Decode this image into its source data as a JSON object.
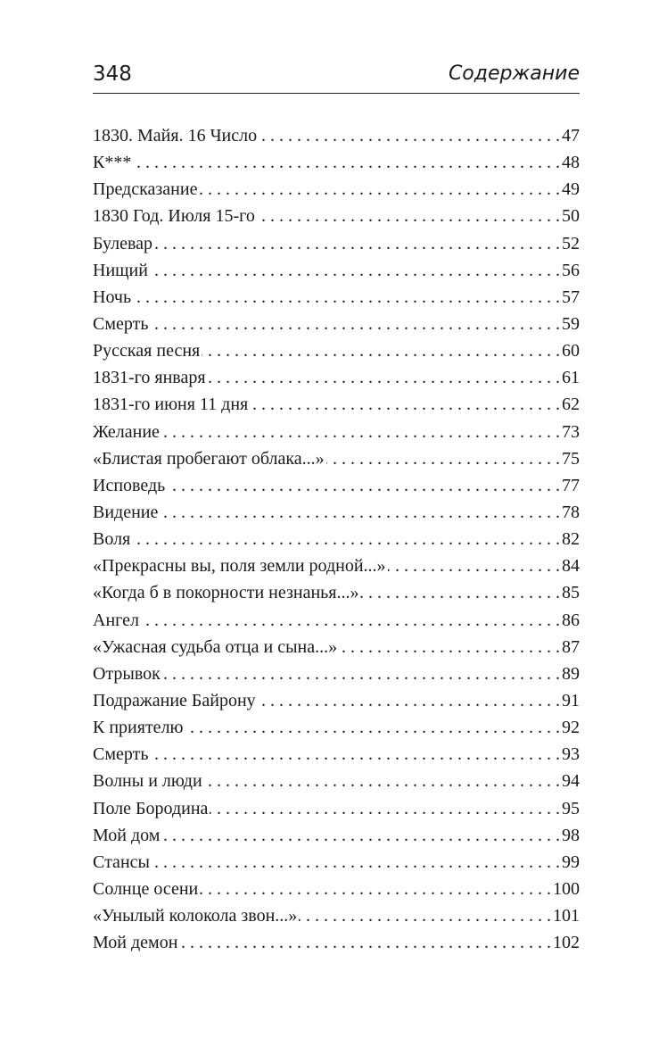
{
  "header": {
    "page_number": "348",
    "section": "Содержание"
  },
  "toc": [
    {
      "title": "1830. Майя. 16 Число",
      "page": "47"
    },
    {
      "title": "К***",
      "page": "48"
    },
    {
      "title": "Предсказание",
      "page": "49"
    },
    {
      "title": "1830 Год. Июля 15-го",
      "page": "50"
    },
    {
      "title": "Булевар",
      "page": "52"
    },
    {
      "title": "Нищий",
      "page": "56"
    },
    {
      "title": "Ночь",
      "page": "57"
    },
    {
      "title": "Смерть",
      "page": "59"
    },
    {
      "title": "Русская песня",
      "page": "60"
    },
    {
      "title": "1831-го января",
      "page": "61"
    },
    {
      "title": "1831-го июня 11 дня",
      "page": "62"
    },
    {
      "title": "Желание",
      "page": "73"
    },
    {
      "title": "«Блистая пробегают облака...»",
      "page": "75"
    },
    {
      "title": "Исповедь",
      "page": "77"
    },
    {
      "title": "Видение",
      "page": "78"
    },
    {
      "title": "Воля",
      "page": "82"
    },
    {
      "title": "«Прекрасны вы, поля земли родной...»",
      "page": "84"
    },
    {
      "title": "«Когда б в покорности незнанья...»",
      "page": "85"
    },
    {
      "title": "Ангел",
      "page": "86"
    },
    {
      "title": "«Ужасная судьба отца и сына...»",
      "page": "87"
    },
    {
      "title": "Отрывок",
      "page": "89"
    },
    {
      "title": "Подражание Байрону",
      "page": "91"
    },
    {
      "title": "К приятелю",
      "page": "92"
    },
    {
      "title": "Смерть",
      "page": "93"
    },
    {
      "title": "Волны и люди",
      "page": "94"
    },
    {
      "title": "Поле Бородина",
      "page": "95"
    },
    {
      "title": "Мой дом",
      "page": "98"
    },
    {
      "title": "Стансы",
      "page": "99"
    },
    {
      "title": "Солнце осени",
      "page": "100"
    },
    {
      "title": "«Унылый колокола звон...»",
      "page": "101"
    },
    {
      "title": "Мой демон",
      "page": "102"
    }
  ]
}
